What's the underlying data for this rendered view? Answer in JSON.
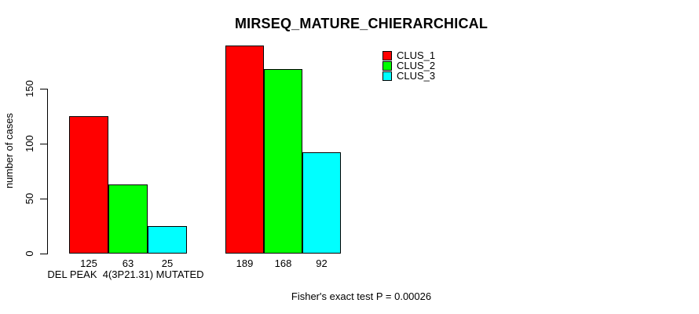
{
  "chart_data": {
    "type": "bar",
    "title": "MIRSEQ_MATURE_CHIERARCHICAL",
    "ylabel": "number of cases",
    "xlabel": "",
    "categories": [
      "DEL PEAK  4(3P21.31) MUTATED",
      ""
    ],
    "series": [
      {
        "name": "CLUS_1",
        "color": "#ff0000",
        "values": [
          125,
          189
        ]
      },
      {
        "name": "CLUS_2",
        "color": "#00ff00",
        "values": [
          63,
          168
        ]
      },
      {
        "name": "CLUS_3",
        "color": "#00ffff",
        "values": [
          25,
          92
        ]
      }
    ],
    "bar_value_labels": [
      [
        125,
        63,
        25
      ],
      [
        189,
        168,
        92
      ]
    ],
    "yticks": [
      0,
      50,
      100,
      150
    ],
    "ylim": [
      0,
      150
    ],
    "grid": false,
    "legend_position": "top-right",
    "annotation": "Fisher's exact test P = 0.00026",
    "background": "#ffffff",
    "bar_border_color": "#000000"
  }
}
